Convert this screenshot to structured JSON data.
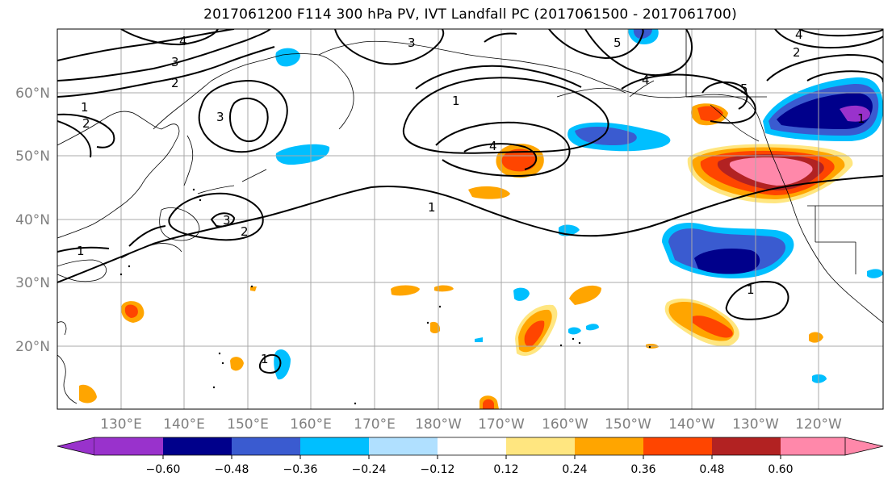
{
  "title": "2017061200 F114 300 hPa PV, IVT Landfall PC (2017061500 - 2017061700)",
  "lat_labels": [
    "20°N",
    "30°N",
    "40°N",
    "50°N",
    "60°N"
  ],
  "lon_labels": [
    "130°E",
    "140°E",
    "150°E",
    "160°E",
    "170°E",
    "180°W",
    "170°W",
    "160°W",
    "150°W",
    "140°W",
    "130°W",
    "120°W"
  ],
  "pv_contour_labels": [
    "1",
    "2",
    "3",
    "4",
    "5"
  ],
  "colorbar": {
    "ticks": [
      "−0.60",
      "−0.48",
      "−0.36",
      "−0.24",
      "−0.12",
      "0.12",
      "0.24",
      "0.36",
      "0.48",
      "0.60"
    ],
    "colors": [
      "#9932cc",
      "#00008b",
      "#3a5bd0",
      "#00bfff",
      "#b0e0ff",
      "#ffffff",
      "#ffe680",
      "#ffa500",
      "#ff4500",
      "#b22222",
      "#ff88aa",
      "#ff88aa"
    ]
  }
}
